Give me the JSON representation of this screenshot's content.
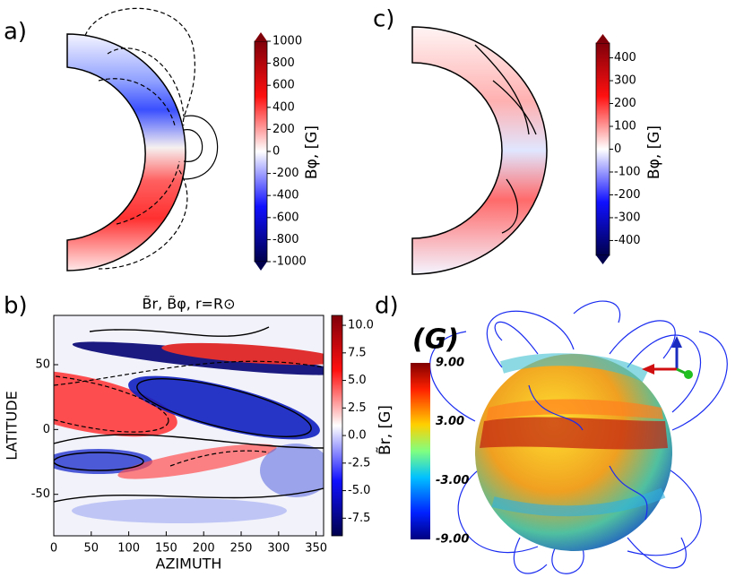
{
  "chart_data": [
    {
      "type": "contour",
      "label": "a)",
      "colorbar_label": "Bφ, [G]",
      "clim": [
        -1000,
        1000
      ],
      "cticks": [
        1000,
        800,
        600,
        400,
        200,
        0,
        -200,
        -400,
        -600,
        -800,
        -1000
      ]
    },
    {
      "type": "contour",
      "label": "c)",
      "colorbar_label": "Bφ, [G]",
      "clim": [
        -465,
        465
      ],
      "cticks": [
        400,
        300,
        200,
        100,
        0,
        -100,
        -200,
        -300,
        -400
      ]
    },
    {
      "type": "contour",
      "label": "b)",
      "title": "B̃r, B̃φ, r=R⊙",
      "xlabel": "AZIMUTH",
      "ylabel": "LATITUDE",
      "xlim": [
        0,
        360
      ],
      "xticks": [
        0,
        50,
        100,
        150,
        200,
        250,
        300,
        350
      ],
      "ylim": [
        -82,
        88
      ],
      "yticks": [
        -50,
        0,
        50
      ],
      "colorbar_label": "B̃r, [G]",
      "clim": [
        -9.1,
        10.9
      ],
      "cticks": [
        {
          "value": 10,
          "label": "10.0"
        },
        7.5,
        {
          "value": 5,
          "label": "5.0"
        },
        2.5,
        {
          "value": 0,
          "label": "0.0"
        },
        -2.5,
        {
          "value": -5,
          "label": "-5.0"
        },
        -7.5
      ]
    },
    {
      "type": "surface",
      "label": "d)",
      "colorbar_label": "(G)",
      "clim": [
        -9,
        9
      ],
      "cticks": [
        {
          "value": 9,
          "label": "9.00"
        },
        {
          "value": 3,
          "label": "3.00"
        },
        {
          "value": -3,
          "label": "-3.00"
        },
        {
          "value": -9,
          "label": "-9.00"
        }
      ]
    }
  ]
}
